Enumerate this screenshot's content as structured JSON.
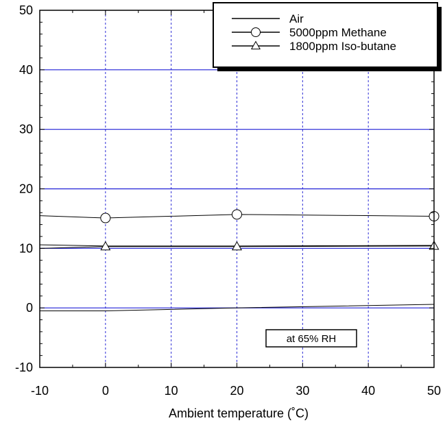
{
  "chart_data": {
    "type": "line",
    "xlabel": "Ambient temperature (˚C)",
    "ylabel": "",
    "xlim": [
      -10,
      50
    ],
    "ylim": [
      -10,
      50
    ],
    "x_ticks": [
      -10,
      0,
      10,
      20,
      30,
      40,
      50
    ],
    "y_ticks": [
      -10,
      0,
      10,
      20,
      30,
      40,
      50
    ],
    "grid": true,
    "legend_position": "top-right",
    "annotation": "at 65% RH",
    "series": [
      {
        "name": "Air",
        "marker": "none",
        "x": [
          -10,
          0,
          20,
          50
        ],
        "y": [
          -0.5,
          -0.5,
          0.0,
          0.6
        ]
      },
      {
        "name": "5000ppm Methane",
        "marker": "circle",
        "x": [
          -10,
          0,
          20,
          50
        ],
        "y": [
          15.5,
          15.1,
          15.7,
          15.4
        ]
      },
      {
        "name": "1800ppm Iso-butane",
        "marker": "triangle",
        "x": [
          -10,
          0,
          20,
          50
        ],
        "y": [
          10.0,
          10.3,
          10.3,
          10.4
        ]
      },
      {
        "name": "",
        "marker": "none",
        "x": [
          -10,
          0,
          20,
          50
        ],
        "y": [
          10.6,
          10.4,
          10.4,
          10.5
        ]
      }
    ]
  }
}
